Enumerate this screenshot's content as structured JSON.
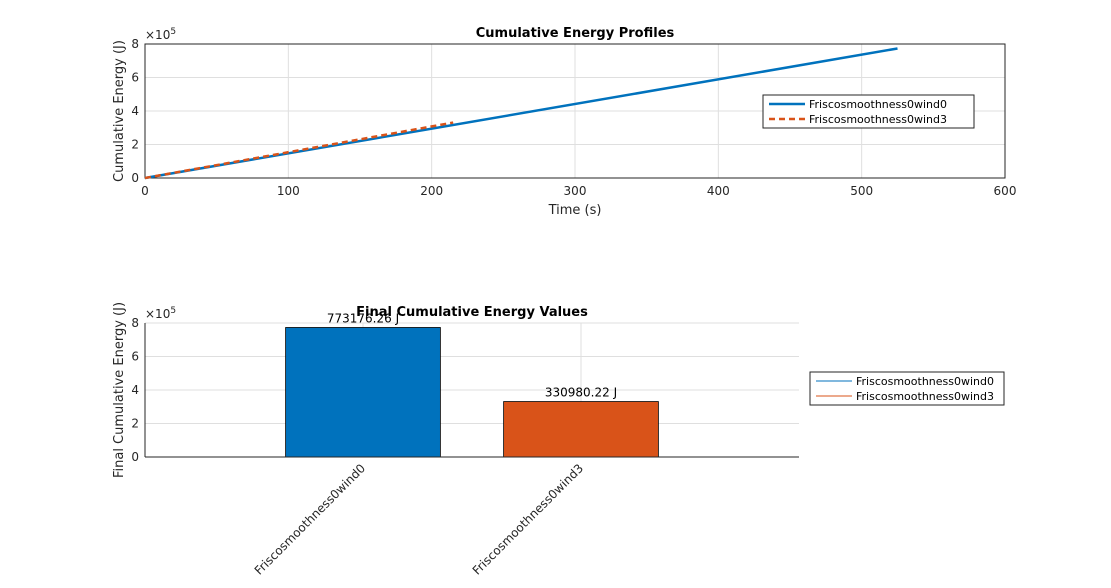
{
  "chart_data": [
    {
      "type": "line",
      "title": "Cumulative Energy Profiles",
      "xlabel": "Time (s)",
      "ylabel": "Cumulative Energy (J)",
      "y_exponent_base": "×10",
      "y_exponent_power": "5",
      "xlim": [
        0,
        600
      ],
      "ylim": [
        0,
        800000
      ],
      "xticks": [
        0,
        100,
        200,
        300,
        400,
        500,
        600
      ],
      "yticks": [
        0,
        200000,
        400000,
        600000,
        800000
      ],
      "ytick_labels": [
        "0",
        "2",
        "4",
        "6",
        "8"
      ],
      "grid": true,
      "legend_position": "right",
      "series": [
        {
          "name": "Friscosmoothness0wind0",
          "color": "#0072bd",
          "style": "solid",
          "x": [
            0,
            525
          ],
          "y": [
            0,
            773176.26
          ]
        },
        {
          "name": "Friscosmoothness0wind3",
          "color": "#d95319",
          "style": "dashed",
          "x": [
            0,
            215
          ],
          "y": [
            0,
            330980.22
          ]
        }
      ]
    },
    {
      "type": "bar",
      "title": "Final Cumulative Energy Values",
      "ylabel": "Final Cumulative Energy (J)",
      "y_exponent_base": "×10",
      "y_exponent_power": "5",
      "ylim": [
        0,
        800000
      ],
      "yticks": [
        0,
        200000,
        400000,
        600000,
        800000
      ],
      "ytick_labels": [
        "0",
        "2",
        "4",
        "6",
        "8"
      ],
      "grid": true,
      "legend_position": "right",
      "categories": [
        "Friscosmoothness0wind0",
        "Friscosmoothness0wind3"
      ],
      "values": [
        773176.26,
        330980.22
      ],
      "data_labels": [
        "773176.26 J",
        "330980.22 J"
      ],
      "colors": [
        "#0072bd",
        "#d95319"
      ],
      "legend": [
        {
          "name": "Friscosmoothness0wind0",
          "color": "#0072bd"
        },
        {
          "name": "Friscosmoothness0wind3",
          "color": "#d95319"
        }
      ]
    }
  ]
}
